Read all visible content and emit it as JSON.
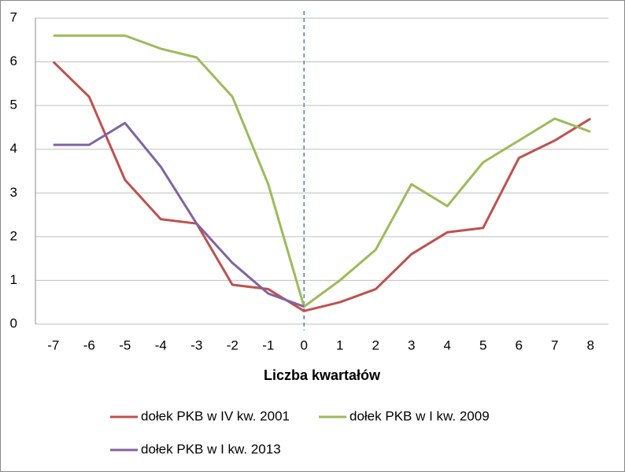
{
  "chart_data": {
    "type": "line",
    "x": [
      -7,
      -6,
      -5,
      -4,
      -3,
      -2,
      -1,
      0,
      1,
      2,
      3,
      4,
      5,
      6,
      7,
      8
    ],
    "series": [
      {
        "name": "dołek PKB w IV kw. 2001",
        "color": "#c0504d",
        "values": [
          6.0,
          5.2,
          3.3,
          2.4,
          2.3,
          0.9,
          0.8,
          0.3,
          0.5,
          0.8,
          1.6,
          2.1,
          2.2,
          3.8,
          4.2,
          4.7
        ]
      },
      {
        "name": "dołek PKB w I kw. 2009",
        "color": "#9bbb59",
        "values": [
          6.6,
          6.6,
          6.6,
          6.3,
          6.1,
          5.2,
          3.2,
          0.4,
          1.0,
          1.7,
          3.2,
          2.7,
          3.7,
          4.2,
          4.7,
          4.4
        ]
      },
      {
        "name": "dołek PKB w I kw. 2013",
        "color": "#8064a2",
        "values": [
          4.1,
          4.1,
          4.6,
          3.6,
          2.3,
          1.4,
          0.7,
          0.4,
          null,
          null,
          null,
          null,
          null,
          null,
          null,
          null
        ]
      }
    ],
    "xlabel": "Liczba kwartałów",
    "xlim": [
      -7.5,
      8.5
    ],
    "xticks": [
      -7,
      -6,
      -5,
      -4,
      -3,
      -2,
      -1,
      0,
      1,
      2,
      3,
      4,
      5,
      6,
      7,
      8
    ],
    "ylim": [
      0,
      7
    ],
    "yticks": [
      0,
      1,
      2,
      3,
      4,
      5,
      6,
      7
    ],
    "grid": true,
    "vline": 0,
    "vline_color": "#4f81bd",
    "legend": "bottom"
  }
}
